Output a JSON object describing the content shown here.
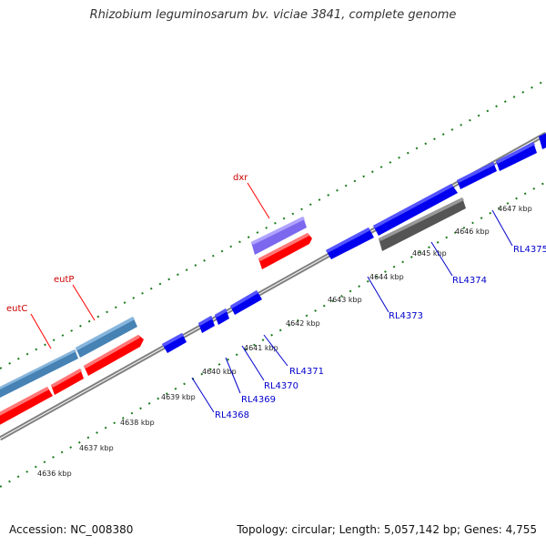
{
  "title": "Rhizobium leguminosarum bv. viciae 3841, complete genome",
  "footer": {
    "accession": "Accession: NC_008380",
    "summary": "Topology: circular; Length: 5,057,142 bp; Genes: 4,755"
  },
  "colors": {
    "forward_gene": "#ff0000",
    "forward_gene_alt": "#4682b4",
    "reverse_gene": "#0000ee",
    "purple_gene": "#7b68ee",
    "gray_gene": "#555555",
    "backbone": "#808080",
    "dots": "#1a7a1a"
  },
  "ticks": [
    "4636 kbp",
    "4637 kbp",
    "4638 kbp",
    "4639 kbp",
    "4640 kbp",
    "4641 kbp",
    "4642 kbp",
    "4643 kbp",
    "4644 kbp",
    "4645 kbp",
    "4646 kbp",
    "4647 kbp"
  ],
  "gene_labels_top": [
    "eutC",
    "eutP",
    "dxr"
  ],
  "gene_labels_bottom": [
    "RL4368",
    "RL4369",
    "RL4370",
    "RL4371",
    "RL4373",
    "RL4374",
    "RL4375"
  ]
}
